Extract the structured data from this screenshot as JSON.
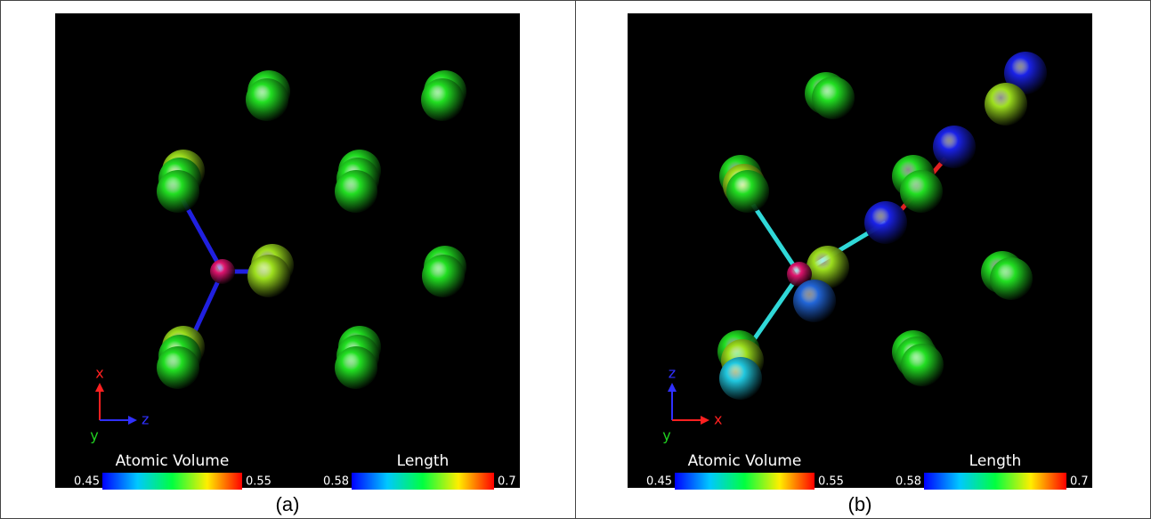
{
  "panels": [
    {
      "label": "(a)",
      "axes": {
        "vertical": "x",
        "horizontal": "z",
        "depth": "y"
      },
      "colorbars": [
        {
          "title": "Atomic Volume",
          "min": 0.45,
          "max": 0.55
        },
        {
          "title": "Length",
          "min": 0.58,
          "max": 0.7
        }
      ]
    },
    {
      "label": "(b)",
      "axes": {
        "vertical": "z",
        "horizontal": "x",
        "depth": "y"
      },
      "colorbars": [
        {
          "title": "Atomic Volume",
          "min": 0.45,
          "max": 0.55
        },
        {
          "title": "Length",
          "min": 0.58,
          "max": 0.7
        }
      ]
    }
  ]
}
